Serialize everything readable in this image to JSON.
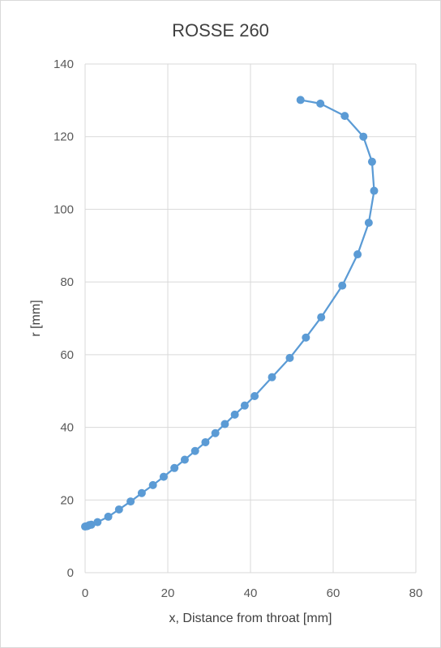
{
  "chart_data": {
    "type": "scatter",
    "title": "ROSSE 260",
    "xlabel": "x, Distance from throat [mm]",
    "ylabel": "r [mm]",
    "xlim": [
      0,
      80
    ],
    "ylim": [
      0,
      140
    ],
    "x_ticks": [
      0,
      20,
      40,
      60,
      80
    ],
    "y_ticks": [
      0,
      20,
      40,
      60,
      80,
      100,
      120,
      140
    ],
    "grid": true,
    "legend": "none",
    "series_color": "#5b9bd5",
    "series": [
      {
        "points": [
          [
            0.0,
            12.7
          ],
          [
            0.5,
            12.8
          ],
          [
            1.0,
            13.1
          ],
          [
            1.5,
            13.2
          ],
          [
            3.0,
            13.9
          ],
          [
            5.6,
            15.4
          ],
          [
            8.2,
            17.4
          ],
          [
            11.0,
            19.6
          ],
          [
            13.7,
            21.9
          ],
          [
            16.4,
            24.1
          ],
          [
            19.0,
            26.4
          ],
          [
            21.6,
            28.8
          ],
          [
            24.1,
            31.1
          ],
          [
            26.6,
            33.5
          ],
          [
            29.1,
            35.9
          ],
          [
            31.5,
            38.4
          ],
          [
            33.8,
            40.9
          ],
          [
            36.2,
            43.5
          ],
          [
            38.6,
            46.0
          ],
          [
            41.0,
            48.6
          ],
          [
            45.2,
            53.8
          ],
          [
            49.5,
            59.1
          ],
          [
            53.4,
            64.7
          ],
          [
            57.1,
            70.3
          ],
          [
            62.2,
            79.0
          ],
          [
            65.9,
            87.6
          ],
          [
            68.6,
            96.3
          ],
          [
            69.9,
            105.1
          ],
          [
            69.4,
            113.1
          ],
          [
            67.3,
            120.0
          ],
          [
            62.8,
            125.7
          ],
          [
            56.9,
            129.1
          ],
          [
            52.1,
            130.1
          ]
        ]
      }
    ]
  }
}
